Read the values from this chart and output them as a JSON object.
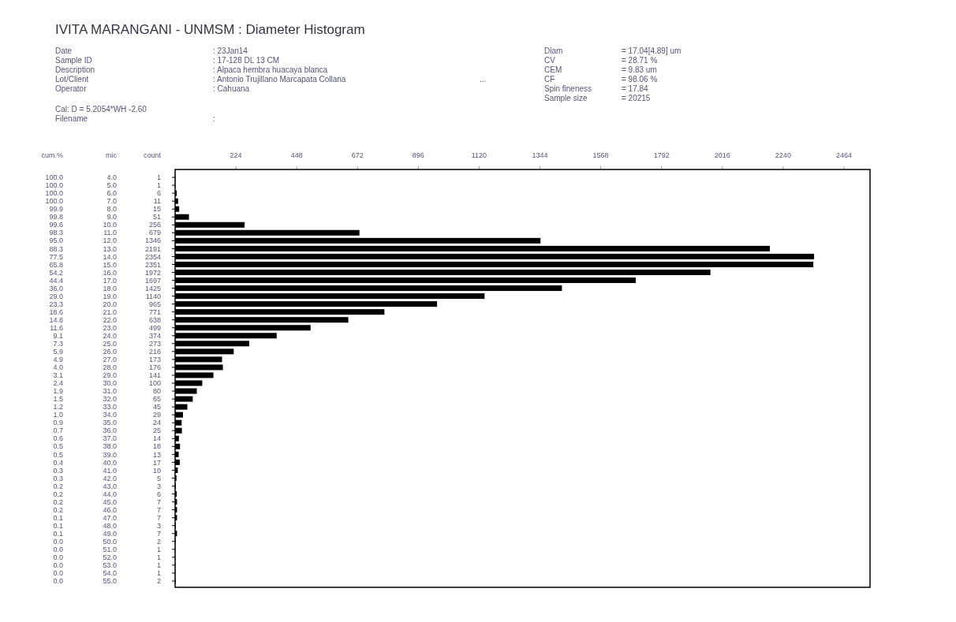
{
  "chart_data": {
    "type": "bar",
    "orientation": "horizontal",
    "title": "IVITA MARANGANI - UNMSM : Diameter Histogram",
    "xlabel": "count",
    "ylabel": "mic",
    "color": "#000000",
    "data_labels": true,
    "grid": false,
    "categories": [
      "4.0",
      "5.0",
      "6.0",
      "7.0",
      "8.0",
      "9.0",
      "10.0",
      "11.0",
      "12.0",
      "13.0",
      "14.0",
      "15.0",
      "16.0",
      "17.0",
      "18.0",
      "19.0",
      "20.0",
      "21.0",
      "22.0",
      "23.0",
      "24.0",
      "25.0",
      "26.0",
      "27.0",
      "28.0",
      "29.0",
      "30.0",
      "31.0",
      "32.0",
      "33.0",
      "34.0",
      "35.0",
      "36.0",
      "37.0",
      "38.0",
      "39.0",
      "40.0",
      "41.0",
      "42.0",
      "43.0",
      "44.0",
      "45.0",
      "46.0",
      "47.0",
      "48.0",
      "49.0",
      "50.0",
      "51.0",
      "52.0",
      "53.0",
      "54.0",
      "55.0"
    ],
    "values": [
      1,
      1,
      6,
      11,
      15,
      51,
      256,
      679,
      1346,
      2191,
      2354,
      2351,
      1972,
      1697,
      1425,
      1140,
      965,
      771,
      638,
      499,
      374,
      273,
      216,
      173,
      176,
      141,
      100,
      80,
      65,
      45,
      29,
      24,
      25,
      14,
      18,
      13,
      17,
      10,
      5,
      3,
      6,
      7,
      7,
      7,
      3,
      7,
      2,
      1,
      1,
      1,
      1,
      2
    ],
    "xlim": [
      0,
      2560
    ],
    "xticks": [
      224,
      448,
      672,
      896,
      1120,
      1344,
      1568,
      1792,
      2016,
      2240,
      2464
    ],
    "annotations": [
      "Date",
      ": 23Jan14",
      "Sample ID",
      ": 17-128 DL 13 CM",
      "Description",
      ": Alpaca hembra huacaya blanca",
      "Lot/Client",
      ": Antonio Trujillano Marcapata Collana",
      "Operator",
      ": Cahuana",
      "...",
      "Cal: D = 5.2054*WH -2.60",
      "Filename",
      ":",
      "Diam",
      "= 17.04[4.89] um",
      "CV",
      "= 28.71 %",
      "CEM",
      "= 9.83 um",
      "CF",
      "= 98.06 %",
      "Spin fineness",
      "= 17.84",
      "Sample size",
      "= 20215",
      "cum.%",
      "100.0",
      "100.0",
      "100.0",
      "100.0",
      "99.9",
      "99.8",
      "99.6",
      "98.3",
      "95.0",
      "88.3",
      "77.5",
      "65.8",
      "54.2",
      "44.4",
      "36.0",
      "29.0",
      "23.3",
      "18.6",
      "14.8",
      "11.6",
      "9.1",
      "7.3",
      "5.9",
      "4.9",
      "4.0",
      "3.1",
      "2.4",
      "1.9",
      "1.5",
      "1.2",
      "1.0",
      "0.9",
      "0.7",
      "0.6",
      "0.5",
      "0.5",
      "0.4",
      "0.3",
      "0.3",
      "0.2",
      "0.2",
      "0.2",
      "0.2",
      "0.1",
      "0.1",
      "0.1",
      "0.0",
      "0.0",
      "0.0",
      "0.0",
      "0.0",
      "0.0"
    ]
  }
}
